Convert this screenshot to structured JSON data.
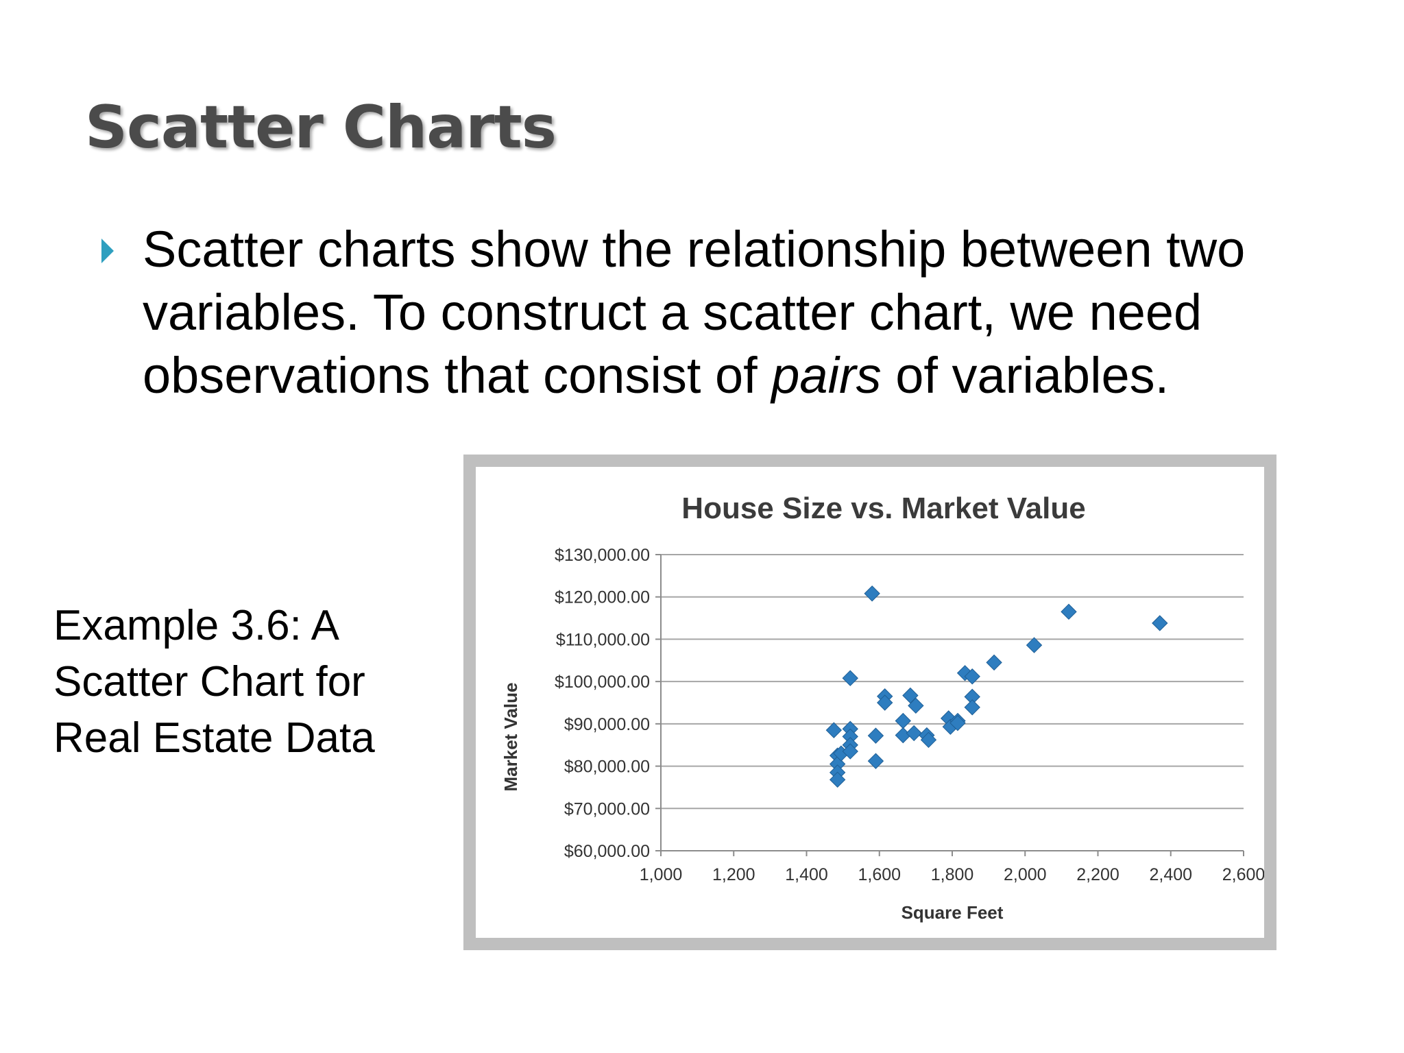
{
  "slide": {
    "title": "Scatter Charts",
    "bullet": {
      "part1": "Scatter charts show the relationship between two variables. To construct a scatter chart, we need observations that consist of ",
      "emphasis": "pairs",
      "part2": " of variables."
    },
    "caption": "Example 3.6: A Scatter Chart for Real Estate Data"
  },
  "colors": {
    "marker": "#2e7dbf",
    "bullet_arrow": "#2e9fbf",
    "frame": "#bfbfbf",
    "gridline": "#a6a6a6"
  },
  "chart_data": {
    "type": "scatter",
    "title": "House Size vs. Market Value",
    "xlabel": "Square Feet",
    "ylabel": "Market Value",
    "xlim": [
      1000,
      2600
    ],
    "ylim": [
      60000,
      130000
    ],
    "x_ticks": [
      1000,
      1200,
      1400,
      1600,
      1800,
      2000,
      2200,
      2400,
      2600
    ],
    "x_tick_labels": [
      "1,000",
      "1,200",
      "1,400",
      "1,600",
      "1,800",
      "2,000",
      "2,200",
      "2,400",
      "2,600"
    ],
    "y_ticks": [
      60000,
      70000,
      80000,
      90000,
      100000,
      110000,
      120000,
      130000
    ],
    "y_tick_labels": [
      "$60,000.00",
      "$70,000.00",
      "$80,000.00",
      "$90,000.00",
      "$100,000.00",
      "$110,000.00",
      "$120,000.00",
      "$130,000.00"
    ],
    "grid": "horizontal",
    "marker": "diamond",
    "series": [
      {
        "points": [
          [
            1475,
            88500
          ],
          [
            1485,
            82500
          ],
          [
            1485,
            80500
          ],
          [
            1485,
            78500
          ],
          [
            1485,
            76800
          ],
          [
            1495,
            83000
          ],
          [
            1520,
            100800
          ],
          [
            1520,
            88800
          ],
          [
            1520,
            87000
          ],
          [
            1520,
            85000
          ],
          [
            1520,
            83500
          ],
          [
            1580,
            120800
          ],
          [
            1590,
            87200
          ],
          [
            1590,
            81200
          ],
          [
            1615,
            96500
          ],
          [
            1615,
            95000
          ],
          [
            1665,
            90700
          ],
          [
            1665,
            87300
          ],
          [
            1685,
            96700
          ],
          [
            1695,
            87800
          ],
          [
            1700,
            94300
          ],
          [
            1730,
            87300
          ],
          [
            1735,
            86200
          ],
          [
            1790,
            91300
          ],
          [
            1795,
            89300
          ],
          [
            1815,
            90700
          ],
          [
            1815,
            90200
          ],
          [
            1835,
            102000
          ],
          [
            1855,
            101200
          ],
          [
            1855,
            96400
          ],
          [
            1855,
            93900
          ],
          [
            1915,
            104500
          ],
          [
            2025,
            108600
          ],
          [
            2120,
            116500
          ],
          [
            2370,
            113800
          ]
        ]
      }
    ]
  }
}
